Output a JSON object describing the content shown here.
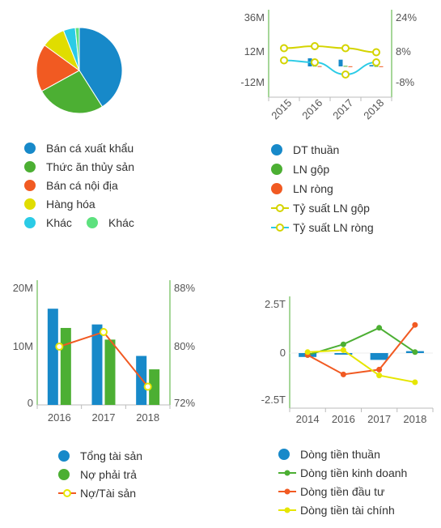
{
  "chart_data": [
    {
      "type": "pie",
      "slices": [
        {
          "label": "Bán cá xuất khẩu",
          "value": 41,
          "color": "#1789c9"
        },
        {
          "label": "Thức ăn thủy sản",
          "value": 26,
          "color": "#4caf33"
        },
        {
          "label": "Bán cá nội địa",
          "value": 18,
          "color": "#f15a22"
        },
        {
          "label": "Hàng hóa",
          "value": 9,
          "color": "#e0dd00"
        },
        {
          "label": "Khác",
          "value": 4.5,
          "color": "#2bcbe6"
        },
        {
          "label": "Khác",
          "value": 1.5,
          "color": "#5de17e"
        }
      ]
    },
    {
      "type": "bar+line",
      "categories": [
        "2015",
        "2016",
        "2017",
        "2018"
      ],
      "y_left": {
        "ticks": [
          "36M",
          "12M",
          "-12M"
        ],
        "range": [
          -12,
          36
        ]
      },
      "y_right": {
        "ticks": [
          "24%",
          "8%",
          "-8%"
        ],
        "range": [
          -8,
          24
        ]
      },
      "series": [
        {
          "name": "DT thuần",
          "kind": "bar",
          "axis": "left",
          "color": "#1789c9",
          "values": [
            null,
            6,
            5,
            1
          ]
        },
        {
          "name": "LN gộp",
          "kind": "bar",
          "axis": "left",
          "color": "#4caf33",
          "values": [
            null,
            0.5,
            0.4,
            0.3
          ]
        },
        {
          "name": "LN ròng",
          "kind": "bar",
          "axis": "left",
          "color": "#f15a22",
          "values": [
            null,
            0.2,
            0.1,
            0.1
          ]
        },
        {
          "name": "Tỷ suất LN gộp",
          "kind": "line",
          "axis": "right",
          "color": "#d4d400",
          "values": [
            9,
            10,
            9,
            7
          ]
        },
        {
          "name": "Tỷ suất LN ròng",
          "kind": "line",
          "axis": "right",
          "color": "#2bcbe6",
          "values": [
            3,
            2,
            -4,
            2
          ]
        }
      ]
    },
    {
      "type": "bar+line",
      "categories": [
        "2016",
        "2017",
        "2018"
      ],
      "y_left": {
        "ticks": [
          "20M",
          "10M",
          "0"
        ],
        "range": [
          0,
          20
        ]
      },
      "y_right": {
        "ticks": [
          "88%",
          "80%",
          "72%"
        ],
        "range": [
          72,
          88
        ]
      },
      "series": [
        {
          "name": "Tổng tài sản",
          "kind": "bar",
          "axis": "left",
          "color": "#1789c9",
          "values": [
            16.5,
            13.8,
            8.4
          ]
        },
        {
          "name": "Nợ phải trả",
          "kind": "bar",
          "axis": "left",
          "color": "#4caf33",
          "values": [
            13.2,
            11.2,
            6.1
          ]
        },
        {
          "name": "Nợ/Tài sản",
          "kind": "line",
          "axis": "right",
          "color": "#f15a22",
          "marker_color": "#e6e600",
          "values": [
            80,
            82,
            74.5
          ]
        }
      ]
    },
    {
      "type": "bar+line",
      "categories": [
        "2014",
        "2016",
        "2017",
        "2018"
      ],
      "y_left": {
        "ticks": [
          "2.5T",
          "0",
          "-2.5T"
        ],
        "range": [
          -2.5,
          2.5
        ]
      },
      "series": [
        {
          "name": "Dòng tiền thuần",
          "kind": "bar",
          "color": "#1789c9",
          "values": [
            -0.2,
            -0.08,
            -0.35,
            0.1
          ]
        },
        {
          "name": "Dòng tiền kinh doanh",
          "kind": "line",
          "color": "#4caf33",
          "values": [
            -0.1,
            0.45,
            1.3,
            0.05
          ]
        },
        {
          "name": "Dòng tiền đầu tư",
          "kind": "line",
          "color": "#f15a22",
          "values": [
            -0.1,
            -1.1,
            -0.85,
            1.45
          ]
        },
        {
          "name": "Dòng tiền tài chính",
          "kind": "line",
          "color": "#e6e600",
          "values": [
            0.05,
            0.15,
            -1.15,
            -1.5
          ]
        }
      ]
    }
  ],
  "legends": {
    "pie": [
      {
        "label": "Bán cá xuất khẩu",
        "color": "#1789c9"
      },
      {
        "label": "Thức ăn thủy sản",
        "color": "#4caf33"
      },
      {
        "label": "Bán cá nội địa",
        "color": "#f15a22"
      },
      {
        "label": "Hàng hóa",
        "color": "#e0dd00"
      },
      {
        "label": "Khác",
        "color": "#2bcbe6"
      },
      {
        "label": "Khác",
        "color": "#5de17e"
      }
    ],
    "income": [
      {
        "label": "DT thuần",
        "color": "#1789c9",
        "kind": "dot"
      },
      {
        "label": "LN gộp",
        "color": "#4caf33",
        "kind": "dot"
      },
      {
        "label": "LN ròng",
        "color": "#f15a22",
        "kind": "dot"
      },
      {
        "label": "Tỷ suất LN gộp",
        "color": "#d4d400",
        "kind": "line-marker"
      },
      {
        "label": "Tỷ suất LN ròng",
        "color": "#2bcbe6",
        "kind": "line-marker"
      }
    ],
    "balance": [
      {
        "label": "Tổng tài sản",
        "color": "#1789c9",
        "kind": "dot"
      },
      {
        "label": "Nợ phải trả",
        "color": "#4caf33",
        "kind": "dot"
      },
      {
        "label": "Nợ/Tài sản",
        "color": "#f15a22",
        "kind": "line-marker"
      }
    ],
    "cashflow": [
      {
        "label": "Dòng tiền thuần",
        "color": "#1789c9",
        "kind": "dot"
      },
      {
        "label": "Dòng tiền kinh doanh",
        "color": "#4caf33",
        "kind": "line-dot"
      },
      {
        "label": "Dòng tiền đầu tư",
        "color": "#f15a22",
        "kind": "line-dot"
      },
      {
        "label": "Dòng tiền tài chính",
        "color": "#e6e600",
        "kind": "line-dot"
      }
    ]
  },
  "colors": {
    "axis": "#4caf33",
    "tick_text": "#555555",
    "grid": "#dddddd"
  }
}
